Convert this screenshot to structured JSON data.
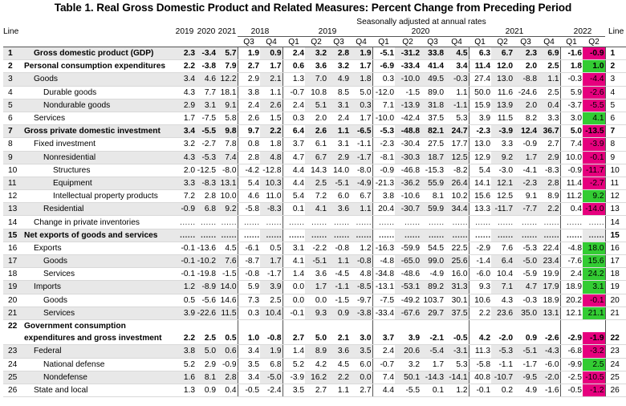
{
  "title": "Table 1. Real Gross Domestic Product and Related Measures: Percent Change from Preceding Period",
  "header": {
    "line": "Line",
    "annual_years": [
      "2019",
      "2020",
      "2021"
    ],
    "seasonal_label": "Seasonally adjusted at annual rates",
    "quarter_years": [
      {
        "year": "2018",
        "quarters": [
          "Q3",
          "Q4"
        ]
      },
      {
        "year": "2019",
        "quarters": [
          "Q1",
          "Q2",
          "Q3",
          "Q4"
        ]
      },
      {
        "year": "2020",
        "quarters": [
          "Q1",
          "Q2",
          "Q3",
          "Q4"
        ]
      },
      {
        "year": "2021",
        "quarters": [
          "Q1",
          "Q2",
          "Q3",
          "Q4"
        ]
      },
      {
        "year": "2022",
        "quarters": [
          "Q1",
          "Q2"
        ]
      }
    ]
  },
  "rows": [
    {
      "line": "1",
      "label": "Gross domestic product (GDP)",
      "indent": 1,
      "bold": true,
      "shade": true,
      "values": [
        "2.3",
        "-3.4",
        "5.7",
        "1.9",
        "0.9",
        "2.4",
        "3.2",
        "2.8",
        "1.9",
        "-5.1",
        "-31.2",
        "33.8",
        "4.5",
        "6.3",
        "6.7",
        "2.3",
        "6.9",
        "-1.6",
        "-0.9"
      ],
      "last_color": "negative"
    },
    {
      "line": "2",
      "label": "Personal consumption expenditures",
      "indent": 0,
      "bold": true,
      "shade": false,
      "values": [
        "2.2",
        "-3.8",
        "7.9",
        "2.7",
        "1.7",
        "0.6",
        "3.6",
        "3.2",
        "1.7",
        "-6.9",
        "-33.4",
        "41.4",
        "3.4",
        "11.4",
        "12.0",
        "2.0",
        "2.5",
        "1.8",
        "1.0"
      ],
      "last_color": "positive"
    },
    {
      "line": "3",
      "label": "Goods",
      "indent": 1,
      "bold": false,
      "shade": true,
      "values": [
        "3.4",
        "4.6",
        "12.2",
        "2.9",
        "2.1",
        "1.3",
        "7.0",
        "4.9",
        "1.8",
        "0.3",
        "-10.0",
        "49.5",
        "-0.3",
        "27.4",
        "13.0",
        "-8.8",
        "1.1",
        "-0.3",
        "-4.4"
      ],
      "last_color": "negative"
    },
    {
      "line": "4",
      "label": "Durable goods",
      "indent": 2,
      "bold": false,
      "shade": false,
      "values": [
        "4.3",
        "7.7",
        "18.1",
        "3.8",
        "1.1",
        "-0.7",
        "10.8",
        "8.5",
        "5.0",
        "-12.0",
        "-1.5",
        "89.0",
        "1.1",
        "50.0",
        "11.6",
        "-24.6",
        "2.5",
        "5.9",
        "-2.6"
      ],
      "last_color": "negative"
    },
    {
      "line": "5",
      "label": "Nondurable goods",
      "indent": 2,
      "bold": false,
      "shade": true,
      "values": [
        "2.9",
        "3.1",
        "9.1",
        "2.4",
        "2.6",
        "2.4",
        "5.1",
        "3.1",
        "0.3",
        "7.1",
        "-13.9",
        "31.8",
        "-1.1",
        "15.9",
        "13.9",
        "2.0",
        "0.4",
        "-3.7",
        "-5.5"
      ],
      "last_color": "negative"
    },
    {
      "line": "6",
      "label": "Services",
      "indent": 1,
      "bold": false,
      "shade": false,
      "values": [
        "1.7",
        "-7.5",
        "5.8",
        "2.6",
        "1.5",
        "0.3",
        "2.0",
        "2.4",
        "1.7",
        "-10.0",
        "-42.4",
        "37.5",
        "5.3",
        "3.9",
        "11.5",
        "8.2",
        "3.3",
        "3.0",
        "4.1"
      ],
      "last_color": "positive"
    },
    {
      "line": "7",
      "label": "Gross private domestic investment",
      "indent": 0,
      "bold": true,
      "shade": true,
      "values": [
        "3.4",
        "-5.5",
        "9.8",
        "9.7",
        "2.2",
        "6.4",
        "2.6",
        "1.1",
        "-6.5",
        "-5.3",
        "-48.8",
        "82.1",
        "24.7",
        "-2.3",
        "-3.9",
        "12.4",
        "36.7",
        "5.0",
        "-13.5"
      ],
      "last_color": "negative"
    },
    {
      "line": "8",
      "label": "Fixed investment",
      "indent": 1,
      "bold": false,
      "shade": false,
      "values": [
        "3.2",
        "-2.7",
        "7.8",
        "0.8",
        "1.8",
        "3.7",
        "6.1",
        "3.1",
        "-1.1",
        "-2.3",
        "-30.4",
        "27.5",
        "17.7",
        "13.0",
        "3.3",
        "-0.9",
        "2.7",
        "7.4",
        "-3.9"
      ],
      "last_color": "negative"
    },
    {
      "line": "9",
      "label": "Nonresidential",
      "indent": 2,
      "bold": false,
      "shade": true,
      "values": [
        "4.3",
        "-5.3",
        "7.4",
        "2.8",
        "4.8",
        "4.7",
        "6.7",
        "2.9",
        "-1.7",
        "-8.1",
        "-30.3",
        "18.7",
        "12.5",
        "12.9",
        "9.2",
        "1.7",
        "2.9",
        "10.0",
        "-0.1"
      ],
      "last_color": "negative"
    },
    {
      "line": "10",
      "label": "Structures",
      "indent": 3,
      "bold": false,
      "shade": false,
      "values": [
        "2.0",
        "-12.5",
        "-8.0",
        "-4.2",
        "-12.8",
        "4.4",
        "14.3",
        "14.0",
        "-8.0",
        "-0.9",
        "-46.8",
        "-15.3",
        "-8.2",
        "5.4",
        "-3.0",
        "-4.1",
        "-8.3",
        "-0.9",
        "-11.7"
      ],
      "last_color": "negative"
    },
    {
      "line": "11",
      "label": "Equipment",
      "indent": 3,
      "bold": false,
      "shade": true,
      "values": [
        "3.3",
        "-8.3",
        "13.1",
        "5.4",
        "10.3",
        "4.4",
        "2.5",
        "-5.1",
        "-4.9",
        "-21.3",
        "-36.2",
        "55.9",
        "26.4",
        "14.1",
        "12.1",
        "-2.3",
        "2.8",
        "11.4",
        "-2.7"
      ],
      "last_color": "negative"
    },
    {
      "line": "12",
      "label": "Intellectual property products",
      "indent": 3,
      "bold": false,
      "shade": false,
      "values": [
        "7.2",
        "2.8",
        "10.0",
        "4.6",
        "11.0",
        "5.4",
        "7.2",
        "6.0",
        "6.7",
        "3.8",
        "-10.6",
        "8.1",
        "10.2",
        "15.6",
        "12.5",
        "9.1",
        "8.9",
        "11.2",
        "9.2"
      ],
      "last_color": "positive"
    },
    {
      "line": "13",
      "label": "Residential",
      "indent": 2,
      "bold": false,
      "shade": true,
      "values": [
        "-0.9",
        "6.8",
        "9.2",
        "-5.8",
        "-8.3",
        "0.1",
        "4.1",
        "3.6",
        "1.1",
        "20.4",
        "-30.7",
        "59.9",
        "34.4",
        "13.3",
        "-11.7",
        "-7.7",
        "2.2",
        "0.4",
        "-14.0"
      ],
      "last_color": "negative"
    },
    {
      "line": "14",
      "label": "Change in private inventories",
      "indent": 1,
      "bold": false,
      "shade": false,
      "dots": true,
      "values": [],
      "last_color": "none"
    },
    {
      "line": "15",
      "label": "Net exports of goods and services",
      "indent": 0,
      "bold": true,
      "shade": true,
      "dots": true,
      "values": [],
      "last_color": "none"
    },
    {
      "line": "16",
      "label": "Exports",
      "indent": 1,
      "bold": false,
      "shade": false,
      "values": [
        "-0.1",
        "-13.6",
        "4.5",
        "-6.1",
        "0.5",
        "3.1",
        "-2.2",
        "-0.8",
        "1.2",
        "-16.3",
        "-59.9",
        "54.5",
        "22.5",
        "-2.9",
        "7.6",
        "-5.3",
        "22.4",
        "-4.8",
        "18.0"
      ],
      "last_color": "positive"
    },
    {
      "line": "17",
      "label": "Goods",
      "indent": 2,
      "bold": false,
      "shade": true,
      "values": [
        "-0.1",
        "-10.2",
        "7.6",
        "-8.7",
        "1.7",
        "4.1",
        "-5.1",
        "1.1",
        "-0.8",
        "-4.8",
        "-65.0",
        "99.0",
        "25.6",
        "-1.4",
        "6.4",
        "-5.0",
        "23.4",
        "-7.6",
        "15.6"
      ],
      "last_color": "positive"
    },
    {
      "line": "18",
      "label": "Services",
      "indent": 2,
      "bold": false,
      "shade": false,
      "values": [
        "-0.1",
        "-19.8",
        "-1.5",
        "-0.8",
        "-1.7",
        "1.4",
        "3.6",
        "-4.5",
        "4.8",
        "-34.8",
        "-48.6",
        "-4.9",
        "16.0",
        "-6.0",
        "10.4",
        "-5.9",
        "19.9",
        "2.4",
        "24.2"
      ],
      "last_color": "positive"
    },
    {
      "line": "19",
      "label": "Imports",
      "indent": 1,
      "bold": false,
      "shade": true,
      "values": [
        "1.2",
        "-8.9",
        "14.0",
        "5.9",
        "3.9",
        "0.0",
        "1.7",
        "-1.1",
        "-8.5",
        "-13.1",
        "-53.1",
        "89.2",
        "31.3",
        "9.3",
        "7.1",
        "4.7",
        "17.9",
        "18.9",
        "3.1"
      ],
      "last_color": "positive"
    },
    {
      "line": "20",
      "label": "Goods",
      "indent": 2,
      "bold": false,
      "shade": false,
      "values": [
        "0.5",
        "-5.6",
        "14.6",
        "7.3",
        "2.5",
        "0.0",
        "0.0",
        "-1.5",
        "-9.7",
        "-7.5",
        "-49.2",
        "103.7",
        "30.1",
        "10.6",
        "4.3",
        "-0.3",
        "18.9",
        "20.2",
        "-0.1"
      ],
      "last_color": "negative"
    },
    {
      "line": "21",
      "label": "Services",
      "indent": 2,
      "bold": false,
      "shade": true,
      "values": [
        "3.9",
        "-22.6",
        "11.5",
        "0.3",
        "10.4",
        "-0.1",
        "9.3",
        "0.9",
        "-3.8",
        "-33.4",
        "-67.6",
        "29.7",
        "37.5",
        "2.2",
        "23.6",
        "35.0",
        "13.1",
        "12.1",
        "21.1"
      ],
      "last_color": "positive"
    },
    {
      "line": "22",
      "label": "Government consumption",
      "indent": 0,
      "bold": true,
      "shade": false,
      "values": [],
      "last_color": "none",
      "continuation": true
    },
    {
      "line": "",
      "label": "expenditures and gross investment",
      "indent": 0,
      "bold": true,
      "shade": false,
      "values": [
        "2.2",
        "2.5",
        "0.5",
        "1.0",
        "-0.8",
        "2.7",
        "5.0",
        "2.1",
        "3.0",
        "3.7",
        "3.9",
        "-2.1",
        "-0.5",
        "4.2",
        "-2.0",
        "0.9",
        "-2.6",
        "-2.9",
        "-1.9"
      ],
      "last_color": "negative",
      "line_right": "22"
    },
    {
      "line": "23",
      "label": "Federal",
      "indent": 1,
      "bold": false,
      "shade": true,
      "values": [
        "3.8",
        "5.0",
        "0.6",
        "3.4",
        "1.9",
        "1.4",
        "8.9",
        "3.6",
        "3.5",
        "2.4",
        "20.6",
        "-5.4",
        "-3.1",
        "11.3",
        "-5.3",
        "-5.1",
        "-4.3",
        "-6.8",
        "-3.2"
      ],
      "last_color": "negative"
    },
    {
      "line": "24",
      "label": "National defense",
      "indent": 2,
      "bold": false,
      "shade": false,
      "values": [
        "5.2",
        "2.9",
        "-0.9",
        "3.5",
        "6.8",
        "5.2",
        "4.2",
        "4.5",
        "6.0",
        "-0.7",
        "3.2",
        "1.7",
        "5.3",
        "-5.8",
        "-1.1",
        "-1.7",
        "-6.0",
        "-9.9",
        "2.5"
      ],
      "last_color": "positive"
    },
    {
      "line": "25",
      "label": "Nondefense",
      "indent": 2,
      "bold": false,
      "shade": true,
      "values": [
        "1.6",
        "8.1",
        "2.8",
        "3.4",
        "-5.0",
        "-3.9",
        "16.2",
        "2.2",
        "0.0",
        "7.4",
        "50.1",
        "-14.3",
        "-14.1",
        "40.8",
        "-10.7",
        "-9.5",
        "-2.0",
        "-2.5",
        "-10.5"
      ],
      "last_color": "negative"
    },
    {
      "line": "26",
      "label": "State and local",
      "indent": 1,
      "bold": false,
      "shade": false,
      "values": [
        "1.3",
        "0.9",
        "0.4",
        "-0.5",
        "-2.4",
        "3.5",
        "2.7",
        "1.1",
        "2.7",
        "4.4",
        "-5.5",
        "0.1",
        "1.2",
        "-0.1",
        "0.2",
        "4.9",
        "-1.6",
        "-0.5",
        "-1.2"
      ],
      "last_color": "negative"
    }
  ],
  "colors": {
    "positive": "#33cc33",
    "negative": "#e6007e",
    "shade": "#e8e8e8"
  }
}
